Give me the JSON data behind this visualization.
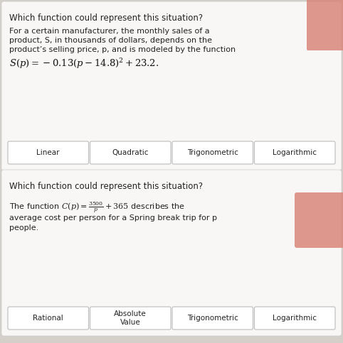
{
  "bg_color": "#d4cfc9",
  "panel1_bg": "#f8f7f5",
  "panel2_bg": "#f8f7f5",
  "highlight_color": "#d9867a",
  "button_bg": "#ffffff",
  "button_border": "#bbbbbb",
  "title1": "Which function could represent this situation?",
  "body1_lines": [
    "For a certain manufacturer, the monthly sales of a",
    "product, S, in thousands of dollars, depends on the",
    "product’s selling price, p, and is modeled by the function"
  ],
  "formula1": "$S(p) = -0.13(p-14.8)^2+23.2.$",
  "buttons1": [
    "Linear",
    "Quadratic",
    "Trigonometric",
    "Logarithmic"
  ],
  "highlight_button1": "",
  "title2": "Which function could represent this situation?",
  "body2_line1_pre": "The function $C(p) = $",
  "body2_frac_num": "3500",
  "body2_frac_den": "p",
  "body2_line1_post": "$+ 365$ describes the",
  "body2_line2": "average cost per person for a Spring break trip for p",
  "body2_line3": "people.",
  "buttons2": [
    "Rational",
    "Absolute\nValue",
    "Trigonometric",
    "Logarithmic"
  ],
  "highlight_button2": "",
  "title_fontsize": 8.5,
  "body_fontsize": 8.0,
  "formula_fontsize": 9.5,
  "button_fontsize": 7.5
}
